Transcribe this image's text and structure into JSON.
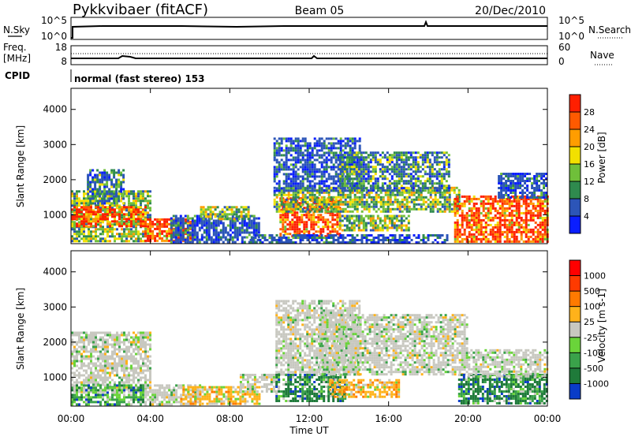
{
  "header": {
    "station": "Pykkvibaer (fitACF)",
    "beam": "Beam 05",
    "date": "20/Dec/2010"
  },
  "top_panels": {
    "nsky_label": "N.Sky",
    "nsky_ticks": [
      "10^5",
      "10^0"
    ],
    "nsearch_label": "N.Search",
    "nsearch_ticks": [
      "10^5",
      "10^0"
    ],
    "freq_label": "Freq.",
    "freq_unit": "[MHz]",
    "freq_ticks": [
      "18",
      "8"
    ],
    "nave_label": "Nave",
    "nave_ticks": [
      "60",
      "0"
    ],
    "cpid_label": "CPID",
    "cpid_value": "normal (fast stereo) 153"
  },
  "chart_data": [
    {
      "type": "heatmap",
      "name": "power",
      "ylabel": "Slant Range [km]",
      "xlabel": "Time UT",
      "ylim": [
        180,
        4600
      ],
      "xlim": [
        0,
        24
      ],
      "yticks": [
        "1000",
        "2000",
        "3000",
        "4000"
      ],
      "xticks": [
        "00:00",
        "04:00",
        "08:00",
        "12:00",
        "16:00",
        "20:00",
        "00:00"
      ],
      "colorbar": {
        "label": "Power [dB]",
        "ticks": [
          "4",
          "8",
          "12",
          "16",
          "20",
          "24",
          "28"
        ],
        "colors": [
          "#0a1eff",
          "#2c55b8",
          "#2f8a4e",
          "#6fbf3a",
          "#f2e000",
          "#ff9d00",
          "#ff5a00",
          "#ff1f00"
        ]
      },
      "regions": [
        {
          "t0": 0,
          "t1": 4.0,
          "r0": 250,
          "r1": 1700,
          "level": "mid"
        },
        {
          "t0": 0,
          "t1": 3.7,
          "r0": 650,
          "r1": 1250,
          "level": "high"
        },
        {
          "t0": 0.8,
          "t1": 2.7,
          "r0": 1300,
          "r1": 2300,
          "level": "mixed"
        },
        {
          "t0": 3.7,
          "t1": 6.2,
          "r0": 250,
          "r1": 900,
          "level": "high"
        },
        {
          "t0": 5.0,
          "t1": 9.5,
          "r0": 250,
          "r1": 1000,
          "level": "low"
        },
        {
          "t0": 6.5,
          "t1": 9.0,
          "r0": 850,
          "r1": 1250,
          "level": "mid"
        },
        {
          "t0": 10.5,
          "t1": 13.5,
          "r0": 400,
          "r1": 1500,
          "level": "high"
        },
        {
          "t0": 10.2,
          "t1": 19.5,
          "r0": 1100,
          "r1": 1800,
          "level": "mid"
        },
        {
          "t0": 10.2,
          "t1": 14.5,
          "r0": 1700,
          "r1": 3200,
          "level": "low"
        },
        {
          "t0": 13.5,
          "t1": 19.0,
          "r0": 1700,
          "r1": 2800,
          "level": "mixed"
        },
        {
          "t0": 13.5,
          "t1": 17.0,
          "r0": 550,
          "r1": 1000,
          "level": "mid"
        },
        {
          "t0": 19.3,
          "t1": 24.0,
          "r0": 250,
          "r1": 1550,
          "level": "high"
        },
        {
          "t0": 21.5,
          "t1": 24.0,
          "r0": 1500,
          "r1": 2200,
          "level": "low"
        },
        {
          "t0": 9.0,
          "t1": 19.0,
          "r0": 200,
          "r1": 450,
          "level": "low"
        }
      ]
    },
    {
      "type": "heatmap",
      "name": "velocity",
      "ylabel": "Slant Range [km]",
      "xlabel": "Time UT",
      "ylim": [
        180,
        4600
      ],
      "xlim": [
        0,
        24
      ],
      "yticks": [
        "1000",
        "2000",
        "3000",
        "4000"
      ],
      "xticks": [
        "00:00",
        "04:00",
        "08:00",
        "12:00",
        "16:00",
        "20:00",
        "00:00"
      ],
      "colorbar": {
        "label": "Velocity [m s-1]",
        "ticks": [
          "1000",
          "500",
          "100",
          "25",
          "-25",
          "-100",
          "-500",
          "-1000"
        ],
        "colors": [
          "#0a3cc8",
          "#1f7a3a",
          "#3aa24a",
          "#6ad43a",
          "#c8c8c0",
          "#ffb21a",
          "#ff7a00",
          "#ff3a00",
          "#ff0000"
        ]
      },
      "regions": [
        {
          "t0": 0,
          "t1": 4.0,
          "r0": 600,
          "r1": 2300,
          "level": "grey"
        },
        {
          "t0": 0,
          "t1": 3.6,
          "r0": 250,
          "r1": 800,
          "level": "green"
        },
        {
          "t0": 3.7,
          "t1": 6.5,
          "r0": 250,
          "r1": 800,
          "level": "grey"
        },
        {
          "t0": 5.5,
          "t1": 9.5,
          "r0": 250,
          "r1": 750,
          "level": "orange"
        },
        {
          "t0": 8.5,
          "t1": 10.5,
          "r0": 600,
          "r1": 1100,
          "level": "grey"
        },
        {
          "t0": 10.3,
          "t1": 14.5,
          "r0": 1100,
          "r1": 3200,
          "level": "grey"
        },
        {
          "t0": 10.3,
          "t1": 13.8,
          "r0": 350,
          "r1": 1100,
          "level": "darkgreen"
        },
        {
          "t0": 13.0,
          "t1": 16.5,
          "r0": 450,
          "r1": 950,
          "level": "orange"
        },
        {
          "t0": 12.5,
          "t1": 20.0,
          "r0": 1100,
          "r1": 2800,
          "level": "grey"
        },
        {
          "t0": 19.5,
          "t1": 24.0,
          "r0": 250,
          "r1": 1100,
          "level": "darkgreen"
        },
        {
          "t0": 20.0,
          "t1": 24.0,
          "r0": 1050,
          "r1": 1800,
          "level": "grey"
        }
      ]
    }
  ]
}
